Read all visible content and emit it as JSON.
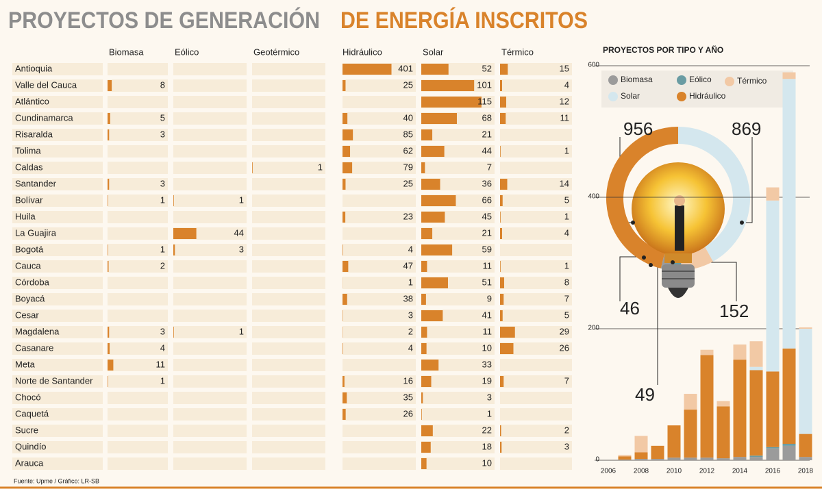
{
  "header": {
    "title_gray": "PROYECTOS DE GENERACIÓN",
    "title_orange": "DE ENERGÍA INSCRITOS"
  },
  "footer": {
    "source": "Fuente: Upme / Gráfico: LR-SB"
  },
  "chart_data": [
    {
      "type": "bar-table",
      "categories": [
        "Antioquia",
        "Valle del Cauca",
        "Atlántico",
        "Cundinamarca",
        "Risaralda",
        "Tolima",
        "Caldas",
        "Santander",
        "Bolívar",
        "Huila",
        "La Guajira",
        "Bogotá",
        "Cauca",
        "Córdoba",
        "Boyacá",
        "Cesar",
        "Magdalena",
        "Casanare",
        "Meta",
        "Norte de Santander",
        "Chocó",
        "Caquetá",
        "Sucre",
        "Quindío",
        "Arauca"
      ],
      "color": "#d9832b",
      "series": [
        {
          "name": "Biomasa",
          "xlim": [
            0,
            115
          ],
          "values": [
            null,
            8,
            null,
            5,
            3,
            null,
            null,
            3,
            1,
            null,
            null,
            1,
            2,
            null,
            null,
            null,
            3,
            4,
            11,
            1,
            null,
            null,
            null,
            null,
            null
          ]
        },
        {
          "name": "Eólico",
          "xlim": [
            0,
            140
          ],
          "values": [
            null,
            null,
            null,
            null,
            null,
            null,
            null,
            null,
            1,
            null,
            44,
            3,
            null,
            null,
            null,
            null,
            1,
            null,
            null,
            null,
            null,
            null,
            null,
            null,
            null
          ]
        },
        {
          "name": "Geotérmico",
          "xlim": [
            0,
            140
          ],
          "values": [
            null,
            null,
            null,
            null,
            null,
            null,
            1,
            null,
            null,
            null,
            null,
            null,
            null,
            null,
            null,
            null,
            null,
            null,
            null,
            null,
            null,
            null,
            null,
            null,
            null
          ]
        },
        {
          "name": "Hidráulico",
          "xlim": [
            0,
            600
          ],
          "values": [
            401,
            25,
            null,
            40,
            85,
            62,
            79,
            25,
            null,
            23,
            null,
            4,
            47,
            1,
            38,
            3,
            2,
            4,
            null,
            16,
            35,
            26,
            null,
            null,
            null
          ]
        },
        {
          "name": "Solar",
          "xlim": [
            0,
            140
          ],
          "values": [
            52,
            101,
            115,
            68,
            21,
            44,
            7,
            36,
            66,
            45,
            21,
            59,
            11,
            51,
            9,
            41,
            11,
            10,
            33,
            19,
            3,
            1,
            22,
            18,
            10
          ]
        },
        {
          "name": "Térmico",
          "xlim": [
            0,
            140
          ],
          "values": [
            15,
            4,
            12,
            11,
            null,
            1,
            null,
            14,
            5,
            1,
            4,
            null,
            1,
            8,
            7,
            5,
            29,
            26,
            null,
            7,
            null,
            null,
            2,
            3,
            null
          ]
        }
      ]
    },
    {
      "type": "donut",
      "values": [
        869,
        152,
        49,
        46,
        956
      ],
      "colors": [
        "#d4e7ee",
        "#f2c9a5",
        "#6a9ca3",
        "#9b9b9b",
        "#d9832b"
      ]
    },
    {
      "type": "stacked-bar",
      "title": "PROYECTOS POR TIPO Y AÑO",
      "x": [
        2007,
        2008,
        2009,
        2010,
        2011,
        2012,
        2013,
        2014,
        2015,
        2016,
        2017,
        2018
      ],
      "xlim": [
        2005,
        2019
      ],
      "xticks": [
        2006,
        2008,
        2010,
        2012,
        2014,
        2016,
        2018
      ],
      "ylim": [
        0,
        600
      ],
      "yticks": [
        0,
        200,
        400,
        600
      ],
      "series": [
        {
          "name": "Biomasa",
          "color": "#9b9b9b",
          "values": [
            1,
            2,
            2,
            4,
            4,
            4,
            3,
            5,
            5,
            18,
            22,
            5
          ]
        },
        {
          "name": "Eólico",
          "color": "#6a9ca3",
          "values": [
            0,
            0,
            0,
            0,
            0,
            0,
            0,
            0,
            2,
            2,
            3,
            0
          ]
        },
        {
          "name": "Hidráulico",
          "color": "#d9832b",
          "values": [
            5,
            10,
            20,
            49,
            73,
            156,
            79,
            148,
            130,
            115,
            145,
            35
          ]
        },
        {
          "name": "Solar",
          "color": "#d4e7ee",
          "values": [
            0,
            0,
            0,
            0,
            0,
            0,
            0,
            0,
            5,
            260,
            410,
            160
          ]
        },
        {
          "name": "Térmico",
          "color": "#f2c9a5",
          "values": [
            2,
            25,
            0,
            0,
            24,
            8,
            8,
            23,
            39,
            20,
            10,
            2
          ]
        }
      ]
    }
  ]
}
